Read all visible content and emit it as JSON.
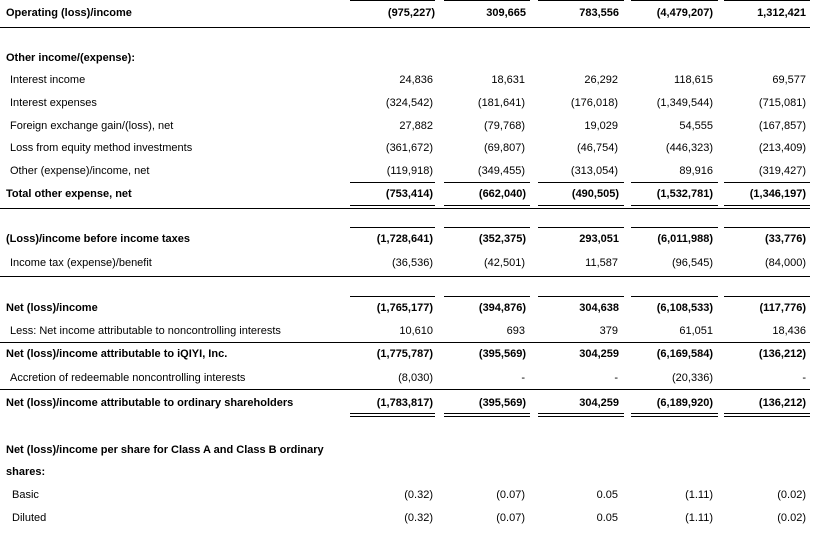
{
  "rows": [
    {
      "label": "Operating (loss)/income",
      "values": [
        "(975,227)",
        "309,665",
        "783,556",
        "(4,479,207)",
        "1,312,421"
      ]
    },
    {
      "label": "Other income/(expense):"
    },
    {
      "label": "Interest income",
      "values": [
        "24,836",
        "18,631",
        "26,292",
        "118,615",
        "69,577"
      ]
    },
    {
      "label": "Interest expenses",
      "values": [
        "(324,542)",
        "(181,641)",
        "(176,018)",
        "(1,349,544)",
        "(715,081)"
      ]
    },
    {
      "label": "Foreign exchange gain/(loss), net",
      "values": [
        "27,882",
        "(79,768)",
        "19,029",
        "54,555",
        "(167,857)"
      ]
    },
    {
      "label": "Loss from equity method investments",
      "values": [
        "(361,672)",
        "(69,807)",
        "(46,754)",
        "(446,323)",
        "(213,409)"
      ]
    },
    {
      "label": "Other (expense)/income, net",
      "values": [
        "(119,918)",
        "(349,455)",
        "(313,054)",
        "89,916",
        "(319,427)"
      ]
    },
    {
      "label": "Total other expense, net",
      "values": [
        "(753,414)",
        "(662,040)",
        "(490,505)",
        "(1,532,781)",
        "(1,346,197)"
      ]
    },
    {
      "label": "(Loss)/income before income taxes",
      "values": [
        "(1,728,641)",
        "(352,375)",
        "293,051",
        "(6,011,988)",
        "(33,776)"
      ]
    },
    {
      "label": "Income tax (expense)/benefit",
      "values": [
        "(36,536)",
        "(42,501)",
        "11,587",
        "(96,545)",
        "(84,000)"
      ]
    },
    {
      "label": "Net (loss)/income",
      "values": [
        "(1,765,177)",
        "(394,876)",
        "304,638",
        "(6,108,533)",
        "(117,776)"
      ]
    },
    {
      "label": "Less: Net income attributable to noncontrolling interests",
      "values": [
        "10,610",
        "693",
        "379",
        "61,051",
        "18,436"
      ]
    },
    {
      "label": "Net (loss)/income attributable to iQIYI, Inc.",
      "values": [
        "(1,775,787)",
        "(395,569)",
        "304,259",
        "(6,169,584)",
        "(136,212)"
      ]
    },
    {
      "label": "Accretion of redeemable noncontrolling interests",
      "values": [
        "(8,030)",
        "-",
        "-",
        "(20,336)",
        "-"
      ]
    },
    {
      "label": "Net (loss)/income attributable to ordinary shareholders",
      "values": [
        "(1,783,817)",
        "(395,569)",
        "304,259",
        "(6,189,920)",
        "(136,212)"
      ]
    },
    {
      "label": "Net (loss)/income per share for Class A and Class B ordinary"
    },
    {
      "label": "shares:"
    },
    {
      "label": "Basic",
      "values": [
        "(0.32)",
        "(0.07)",
        "0.05",
        "(1.11)",
        "(0.02)"
      ]
    },
    {
      "label": "Diluted",
      "values": [
        "(0.32)",
        "(0.07)",
        "0.05",
        "(1.11)",
        "(0.02)"
      ]
    }
  ]
}
